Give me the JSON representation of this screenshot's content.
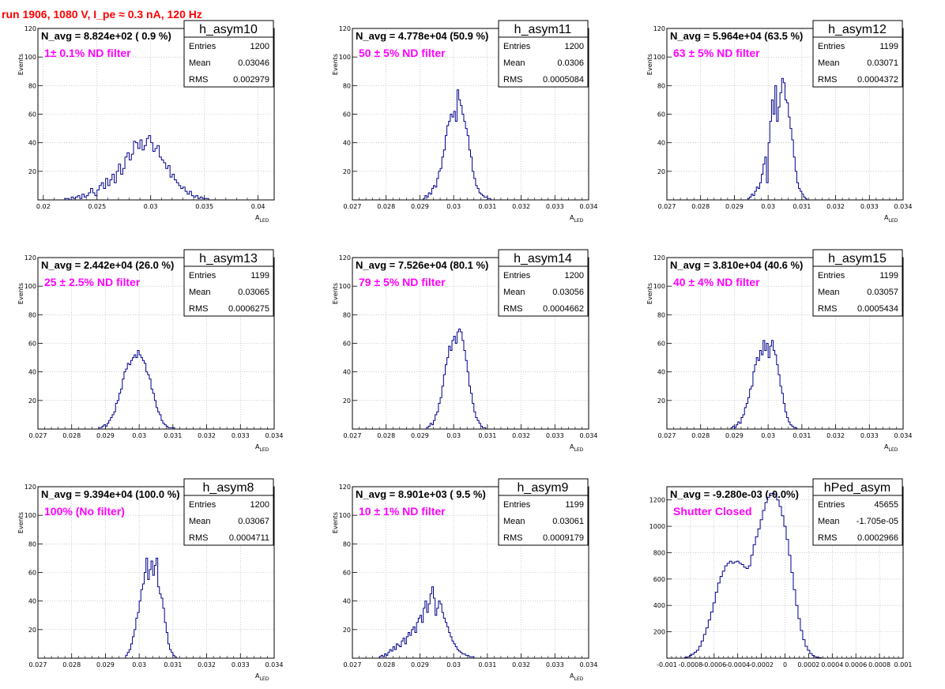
{
  "title": "run 1906,  1080 V, I_pe ≈ 0.3 nA, 120 Hz",
  "colors": {
    "title": "#ff0000",
    "annotation": "#ff00ff",
    "hist": "#00008b",
    "grid": "#aaaaaa"
  },
  "stats_labels": {
    "entries": "Entries",
    "mean": "Mean",
    "rms": "RMS"
  },
  "chart_data": [
    {
      "type": "histogram",
      "name": "h_asym10",
      "n_avg": "N_avg = 8.824e+02 ( 0.9 %)",
      "annotation": "1± 0.1% ND filter",
      "entries": "1200",
      "mean": "0.03046",
      "rms": "0.002979",
      "xlabel": "A",
      "xlabel_sub": "LED",
      "ylabel": "Events",
      "xlim": [
        0.0195,
        0.0415
      ],
      "ylim": [
        0,
        120
      ],
      "xticks": [
        0.02,
        0.025,
        0.03,
        0.035,
        0.04
      ],
      "xticklabels": [
        "0.02",
        "0.025",
        "0.03",
        "0.035",
        "0.04"
      ],
      "yticks": [
        0,
        20,
        40,
        60,
        80,
        100,
        120
      ],
      "yticklabels": [
        "",
        "20",
        "40",
        "60",
        "80",
        "100",
        "120"
      ],
      "bins": {
        "x0": 0.022,
        "width": 0.0002,
        "values": [
          1,
          1,
          0,
          2,
          1,
          2,
          3,
          1,
          4,
          2,
          3,
          5,
          8,
          5,
          3,
          7,
          10,
          12,
          8,
          15,
          10,
          14,
          18,
          12,
          20,
          25,
          18,
          22,
          30,
          33,
          28,
          32,
          41,
          40,
          36,
          42,
          35,
          38,
          43,
          45,
          40,
          34,
          36,
          38,
          30,
          28,
          26,
          22,
          24,
          16,
          18,
          14,
          12,
          10,
          8,
          9,
          6,
          4,
          6,
          3,
          2,
          3,
          1,
          2,
          1,
          1,
          1
        ]
      }
    },
    {
      "type": "histogram",
      "name": "h_asym11",
      "n_avg": "N_avg = 4.778e+04 (50.9 %)",
      "annotation": "50 ± 5% ND filter",
      "entries": "1200",
      "mean": "0.0306",
      "rms": "0.0005084",
      "xlabel": "A",
      "xlabel_sub": "LED",
      "ylabel": "Events",
      "xlim": [
        0.027,
        0.034
      ],
      "ylim": [
        0,
        120
      ],
      "xticks": [
        0.027,
        0.028,
        0.029,
        0.03,
        0.031,
        0.032,
        0.033,
        0.034
      ],
      "xticklabels": [
        "0.027",
        "0.028",
        "0.029",
        "0.03",
        "0.031",
        "0.032",
        "0.033",
        "0.034"
      ],
      "yticks": [
        0,
        20,
        40,
        60,
        80,
        100,
        120
      ],
      "yticklabels": [
        "",
        "20",
        "40",
        "60",
        "80",
        "100",
        "120"
      ],
      "bins": {
        "x0": 0.0291,
        "width": 5e-05,
        "values": [
          1,
          3,
          2,
          5,
          4,
          8,
          10,
          9,
          15,
          20,
          22,
          30,
          35,
          45,
          52,
          55,
          60,
          58,
          62,
          55,
          77,
          70,
          66,
          60,
          55,
          50,
          45,
          35,
          30,
          20,
          15,
          10,
          8,
          5,
          4,
          3,
          2,
          2,
          1,
          1
        ]
      }
    },
    {
      "type": "histogram",
      "name": "h_asym12",
      "n_avg": "N_avg = 5.964e+04 (63.5 %)",
      "annotation": "63 ± 5% ND filter",
      "entries": "1199",
      "mean": "0.03071",
      "rms": "0.0004372",
      "xlabel": "A",
      "xlabel_sub": "LED",
      "ylabel": "Events",
      "xlim": [
        0.027,
        0.034
      ],
      "ylim": [
        0,
        120
      ],
      "xticks": [
        0.027,
        0.028,
        0.029,
        0.03,
        0.031,
        0.032,
        0.033,
        0.034
      ],
      "xticklabels": [
        "0.027",
        "0.028",
        "0.029",
        "0.03",
        "0.031",
        "0.032",
        "0.033",
        "0.034"
      ],
      "yticks": [
        0,
        20,
        40,
        60,
        80,
        100,
        120
      ],
      "yticklabels": [
        "",
        "20",
        "40",
        "60",
        "80",
        "100",
        "120"
      ],
      "bins": {
        "x0": 0.0294,
        "width": 5e-05,
        "values": [
          1,
          2,
          4,
          3,
          6,
          9,
          8,
          12,
          18,
          25,
          30,
          12,
          40,
          55,
          70,
          60,
          80,
          55,
          65,
          75,
          85,
          82,
          70,
          68,
          58,
          50,
          42,
          30,
          20,
          12,
          8,
          6,
          4,
          2,
          1
        ]
      }
    },
    {
      "type": "histogram",
      "name": "h_asym13",
      "n_avg": "N_avg = 2.442e+04 (26.0 %)",
      "annotation": "25 ± 2.5% ND filter",
      "entries": "1199",
      "mean": "0.03065",
      "rms": "0.0006275",
      "xlabel": "A",
      "xlabel_sub": "LED",
      "ylabel": "Events",
      "xlim": [
        0.027,
        0.034
      ],
      "ylim": [
        0,
        120
      ],
      "xticks": [
        0.027,
        0.028,
        0.029,
        0.03,
        0.031,
        0.032,
        0.033,
        0.034
      ],
      "xticklabels": [
        "0.027",
        "0.028",
        "0.029",
        "0.03",
        "0.031",
        "0.032",
        "0.033",
        "0.034"
      ],
      "yticks": [
        0,
        20,
        40,
        60,
        80,
        100,
        120
      ],
      "yticklabels": [
        "",
        "20",
        "40",
        "60",
        "80",
        "100",
        "120"
      ],
      "bins": {
        "x0": 0.0288,
        "width": 5e-05,
        "values": [
          1,
          1,
          2,
          3,
          2,
          4,
          6,
          8,
          10,
          12,
          18,
          20,
          25,
          28,
          35,
          40,
          42,
          46,
          45,
          48,
          50,
          52,
          50,
          55,
          52,
          50,
          48,
          46,
          40,
          38,
          35,
          28,
          25,
          20,
          15,
          12,
          10,
          6,
          4,
          3,
          2,
          1,
          1,
          1,
          1
        ]
      }
    },
    {
      "type": "histogram",
      "name": "h_asym14",
      "n_avg": "N_avg = 7.526e+04 (80.1 %)",
      "annotation": "79 ± 5% ND filter",
      "entries": "1200",
      "mean": "0.03056",
      "rms": "0.0004662",
      "xlabel": "A",
      "xlabel_sub": "LED",
      "ylabel": "Events",
      "xlim": [
        0.027,
        0.034
      ],
      "ylim": [
        0,
        120
      ],
      "xticks": [
        0.027,
        0.028,
        0.029,
        0.03,
        0.031,
        0.032,
        0.033,
        0.034
      ],
      "xticklabels": [
        "0.027",
        "0.028",
        "0.029",
        "0.03",
        "0.031",
        "0.032",
        "0.033",
        "0.034"
      ],
      "yticks": [
        0,
        20,
        40,
        60,
        80,
        100,
        120
      ],
      "yticklabels": [
        "",
        "20",
        "40",
        "60",
        "80",
        "100",
        "120"
      ],
      "bins": {
        "x0": 0.0292,
        "width": 5e-05,
        "values": [
          1,
          2,
          4,
          3,
          6,
          10,
          12,
          18,
          22,
          30,
          38,
          45,
          50,
          58,
          55,
          62,
          65,
          60,
          68,
          70,
          68,
          62,
          55,
          48,
          40,
          30,
          25,
          18,
          12,
          8,
          6,
          4,
          2,
          1,
          1
        ]
      }
    },
    {
      "type": "histogram",
      "name": "h_asym15",
      "n_avg": "N_avg = 3.810e+04 (40.6 %)",
      "annotation": "40 ± 4% ND filter",
      "entries": "1199",
      "mean": "0.03057",
      "rms": "0.0005434",
      "xlabel": "A",
      "xlabel_sub": "LED",
      "ylabel": "Events",
      "xlim": [
        0.027,
        0.034
      ],
      "ylim": [
        0,
        120
      ],
      "xticks": [
        0.027,
        0.028,
        0.029,
        0.03,
        0.031,
        0.032,
        0.033,
        0.034
      ],
      "xticklabels": [
        "0.027",
        "0.028",
        "0.029",
        "0.03",
        "0.031",
        "0.032",
        "0.033",
        "0.034"
      ],
      "yticks": [
        0,
        20,
        40,
        60,
        80,
        100,
        120
      ],
      "yticklabels": [
        "",
        "20",
        "40",
        "60",
        "80",
        "100",
        "120"
      ],
      "bins": {
        "x0": 0.0289,
        "width": 5e-05,
        "values": [
          1,
          2,
          1,
          3,
          5,
          4,
          8,
          10,
          15,
          18,
          22,
          28,
          30,
          40,
          45,
          50,
          48,
          55,
          52,
          62,
          55,
          60,
          50,
          58,
          62,
          55,
          52,
          45,
          38,
          30,
          25,
          18,
          12,
          8,
          5,
          3,
          2,
          1,
          1
        ]
      }
    },
    {
      "type": "histogram",
      "name": "h_asym8",
      "n_avg": "N_avg = 9.394e+04 (100.0 %)",
      "annotation": "100% (No filter)",
      "entries": "1200",
      "mean": "0.03067",
      "rms": "0.0004711",
      "xlabel": "A",
      "xlabel_sub": "LED",
      "ylabel": "Events",
      "xlim": [
        0.027,
        0.034
      ],
      "ylim": [
        0,
        120
      ],
      "xticks": [
        0.027,
        0.028,
        0.029,
        0.03,
        0.031,
        0.032,
        0.033,
        0.034
      ],
      "xticklabels": [
        "0.027",
        "0.028",
        "0.029",
        "0.03",
        "0.031",
        "0.032",
        "0.033",
        "0.034"
      ],
      "yticks": [
        0,
        20,
        40,
        60,
        80,
        100,
        120
      ],
      "yticklabels": [
        "",
        "20",
        "40",
        "60",
        "80",
        "100",
        "120"
      ],
      "bins": {
        "x0": 0.0296,
        "width": 5e-05,
        "values": [
          2,
          4,
          6,
          10,
          15,
          20,
          28,
          32,
          40,
          48,
          52,
          60,
          70,
          55,
          62,
          68,
          58,
          65,
          70,
          50,
          45,
          42,
          35,
          25,
          18,
          10,
          6,
          4,
          2,
          1
        ]
      }
    },
    {
      "type": "histogram",
      "name": "h_asym9",
      "n_avg": "N_avg = 8.901e+03 ( 9.5 %)",
      "annotation": "10 ± 1% ND filter",
      "entries": "1199",
      "mean": "0.03061",
      "rms": "0.0009179",
      "xlabel": "A",
      "xlabel_sub": "LED",
      "ylabel": "Events",
      "xlim": [
        0.027,
        0.034
      ],
      "ylim": [
        0,
        120
      ],
      "xticks": [
        0.027,
        0.028,
        0.029,
        0.03,
        0.031,
        0.032,
        0.033,
        0.034
      ],
      "xticklabels": [
        "0.027",
        "0.028",
        "0.029",
        "0.03",
        "0.031",
        "0.032",
        "0.033",
        "0.034"
      ],
      "yticks": [
        0,
        20,
        40,
        60,
        80,
        100,
        120
      ],
      "yticklabels": [
        "",
        "20",
        "40",
        "60",
        "80",
        "100",
        "120"
      ],
      "bins": {
        "x0": 0.0278,
        "width": 5e-05,
        "values": [
          1,
          2,
          1,
          3,
          2,
          4,
          6,
          5,
          8,
          6,
          10,
          9,
          8,
          12,
          14,
          10,
          15,
          18,
          16,
          20,
          22,
          18,
          25,
          28,
          30,
          25,
          35,
          40,
          32,
          38,
          45,
          50,
          42,
          30,
          35,
          40,
          38,
          32,
          28,
          25,
          22,
          18,
          15,
          12,
          10,
          8,
          6,
          5,
          4,
          3,
          3,
          2,
          2,
          1,
          1,
          1
        ]
      }
    },
    {
      "type": "histogram",
      "name": "hPed_asym",
      "n_avg": "N_avg = -9.280e-03 (-0.0%)",
      "annotation": "Shutter Closed",
      "entries": "45655",
      "mean": "-1.705e-05",
      "rms": "0.0002966",
      "xlabel": "",
      "xlabel_sub": "",
      "ylabel": "",
      "xlim": [
        -0.001,
        0.001
      ],
      "ylim": [
        0,
        1300
      ],
      "xticks": [
        -0.001,
        -0.0008,
        -0.0006,
        -0.0004,
        -0.0002,
        0,
        0.0002,
        0.0004,
        0.0006,
        0.0008,
        0.001
      ],
      "xticklabels": [
        "-0.001",
        "-0.0008",
        "-0.0006",
        "-0.0004",
        "-0.0002",
        "0",
        "0.0002",
        "0.0004",
        "0.0006",
        "0.0008",
        "0.001"
      ],
      "yticks": [
        0,
        200,
        400,
        600,
        800,
        1000,
        1200
      ],
      "yticklabels": [
        "",
        "200",
        "400",
        "600",
        "800",
        "1000",
        "1200"
      ],
      "bins": {
        "x0": -0.00085,
        "width": 2e-05,
        "values": [
          5,
          10,
          20,
          30,
          45,
          60,
          90,
          130,
          180,
          230,
          290,
          350,
          420,
          500,
          570,
          620,
          660,
          700,
          720,
          735,
          720,
          730,
          735,
          720,
          710,
          690,
          680,
          700,
          780,
          860,
          920,
          980,
          1050,
          1120,
          1180,
          1220,
          1250,
          1250,
          1240,
          1200,
          1150,
          1080,
          1000,
          900,
          780,
          650,
          520,
          400,
          300,
          210,
          140,
          90,
          60,
          35,
          20,
          10,
          5,
          3
        ]
      }
    }
  ]
}
